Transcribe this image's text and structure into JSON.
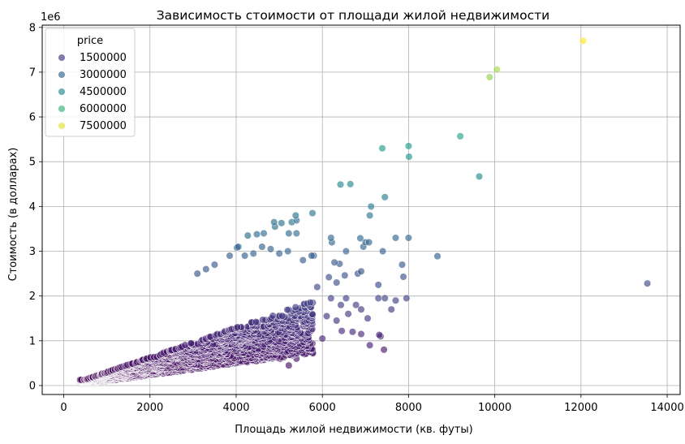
{
  "chart_data": {
    "type": "scatter",
    "title": "Зависимость стоимости от площади жилой недвижимости",
    "xlabel": "Площадь жилой недвижимости (кв. футы)",
    "ylabel": "Стоимость (в долларах)",
    "y_offset_label": "1e6",
    "xlim": [
      -500,
      14300
    ],
    "ylim": [
      -0.2,
      8.05
    ],
    "x_ticks": [
      0,
      2000,
      4000,
      6000,
      8000,
      10000,
      12000,
      14000
    ],
    "x_tick_labels": [
      "0",
      "2000",
      "4000",
      "6000",
      "8000",
      "10000",
      "12000",
      "14000"
    ],
    "y_ticks": [
      0,
      1,
      2,
      3,
      4,
      5,
      6,
      7,
      8
    ],
    "y_tick_labels": [
      "0",
      "1",
      "2",
      "3",
      "4",
      "5",
      "6",
      "7",
      "8"
    ],
    "grid": true,
    "hue": "price",
    "colormap": "viridis",
    "hue_range": [
      75000,
      7700000
    ],
    "legend": {
      "title": "price",
      "placement": "top-left",
      "entries": [
        {
          "label": "1500000",
          "value": 1500000
        },
        {
          "label": "3000000",
          "value": 3000000
        },
        {
          "label": "4500000",
          "value": 4500000
        },
        {
          "label": "6000000",
          "value": 6000000
        },
        {
          "label": "7500000",
          "value": 7500000
        }
      ]
    },
    "series": [
      {
        "points": [
          [
            12050,
            7.7
          ],
          [
            10050,
            7.06
          ],
          [
            9880,
            6.89
          ],
          [
            9200,
            5.57
          ],
          [
            9640,
            4.67
          ],
          [
            7390,
            5.3
          ],
          [
            8000,
            5.35
          ],
          [
            8010,
            5.11
          ],
          [
            6420,
            4.49
          ],
          [
            6650,
            4.5
          ],
          [
            7450,
            4.21
          ],
          [
            7130,
            4.0
          ],
          [
            7100,
            3.8
          ],
          [
            5770,
            3.85
          ],
          [
            5380,
            3.8
          ],
          [
            5400,
            3.69
          ],
          [
            5290,
            3.65
          ],
          [
            5050,
            3.63
          ],
          [
            4880,
            3.65
          ],
          [
            4900,
            3.55
          ],
          [
            5220,
            3.4
          ],
          [
            5400,
            3.4
          ],
          [
            4640,
            3.4
          ],
          [
            4480,
            3.38
          ],
          [
            4270,
            3.35
          ],
          [
            4050,
            3.1
          ],
          [
            4020,
            3.08
          ],
          [
            6200,
            3.3
          ],
          [
            6220,
            3.2
          ],
          [
            6880,
            3.29
          ],
          [
            7000,
            3.2
          ],
          [
            7080,
            3.2
          ],
          [
            7700,
            3.3
          ],
          [
            8000,
            3.3
          ],
          [
            6950,
            3.1
          ],
          [
            6550,
            3.0
          ],
          [
            7400,
            3.0
          ],
          [
            8670,
            2.89
          ],
          [
            7850,
            2.7
          ],
          [
            6280,
            2.75
          ],
          [
            6400,
            2.72
          ],
          [
            6820,
            2.5
          ],
          [
            6900,
            2.55
          ],
          [
            7300,
            2.25
          ],
          [
            7880,
            2.43
          ],
          [
            6150,
            2.42
          ],
          [
            6520,
            2.46
          ],
          [
            6330,
            2.3
          ],
          [
            5880,
            2.2
          ],
          [
            13540,
            2.28
          ],
          [
            5800,
            2.9
          ],
          [
            5750,
            2.9
          ],
          [
            5550,
            2.8
          ],
          [
            5200,
            3.0
          ],
          [
            5000,
            2.95
          ],
          [
            4800,
            3.05
          ],
          [
            4600,
            3.1
          ],
          [
            4400,
            2.95
          ],
          [
            4200,
            2.9
          ],
          [
            3850,
            2.9
          ],
          [
            3500,
            2.7
          ],
          [
            3300,
            2.6
          ],
          [
            3100,
            2.5
          ],
          [
            6200,
            1.95
          ],
          [
            6550,
            1.95
          ],
          [
            6780,
            1.8
          ],
          [
            6430,
            1.8
          ],
          [
            6900,
            1.7
          ],
          [
            7300,
            1.95
          ],
          [
            7450,
            1.95
          ],
          [
            7700,
            1.9
          ],
          [
            7950,
            1.95
          ],
          [
            7600,
            1.7
          ],
          [
            6600,
            1.6
          ],
          [
            6100,
            1.55
          ],
          [
            6330,
            1.45
          ],
          [
            7050,
            1.5
          ],
          [
            7100,
            0.9
          ],
          [
            7430,
            0.8
          ],
          [
            6900,
            1.15
          ],
          [
            6700,
            1.2
          ],
          [
            7320,
            1.13
          ],
          [
            7350,
            1.1
          ],
          [
            6450,
            1.22
          ],
          [
            6000,
            1.05
          ],
          [
            5750,
            0.8
          ],
          [
            5700,
            0.75
          ],
          [
            5400,
            0.6
          ],
          [
            5220,
            0.45
          ],
          [
            5020,
            0.6
          ],
          [
            5300,
            0.7
          ]
        ]
      }
    ]
  }
}
